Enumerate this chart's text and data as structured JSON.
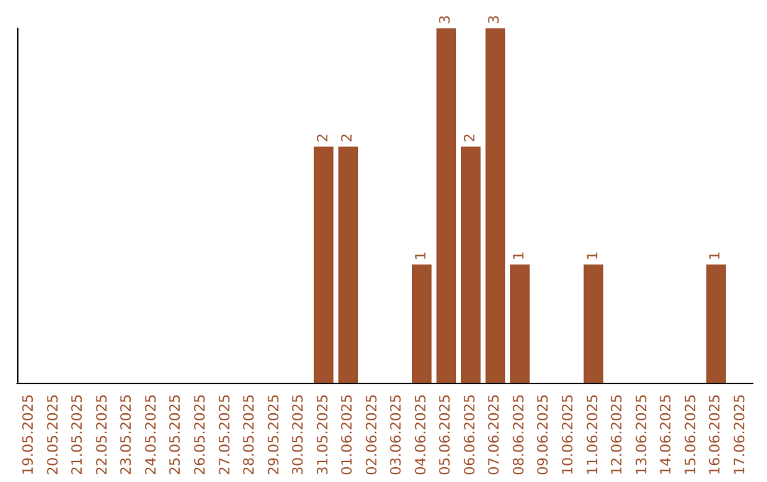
{
  "chart_data": {
    "type": "bar",
    "categories": [
      "19.05.2025",
      "20.05.2025",
      "21.05.2025",
      "22.05.2025",
      "23.05.2025",
      "24.05.2025",
      "25.05.2025",
      "26.05.2025",
      "27.05.2025",
      "28.05.2025",
      "29.05.2025",
      "30.05.2025",
      "31.05.2025",
      "01.06.2025",
      "02.06.2025",
      "03.06.2025",
      "04.06.2025",
      "05.06.2025",
      "06.06.2025",
      "07.06.2025",
      "08.06.2025",
      "09.06.2025",
      "10.06.2025",
      "11.06.2025",
      "12.06.2025",
      "13.06.2025",
      "14.06.2025",
      "15.06.2025",
      "16.06.2025",
      "17.06.2025"
    ],
    "values": [
      null,
      null,
      null,
      null,
      null,
      null,
      null,
      null,
      null,
      null,
      null,
      null,
      2,
      2,
      null,
      null,
      1,
      3,
      2,
      3,
      1,
      null,
      null,
      1,
      null,
      null,
      null,
      null,
      1,
      null
    ],
    "data_labels": true,
    "color": "#a0522d",
    "ylim": [
      0,
      3
    ],
    "tick_labels": "x",
    "grid": false
  }
}
